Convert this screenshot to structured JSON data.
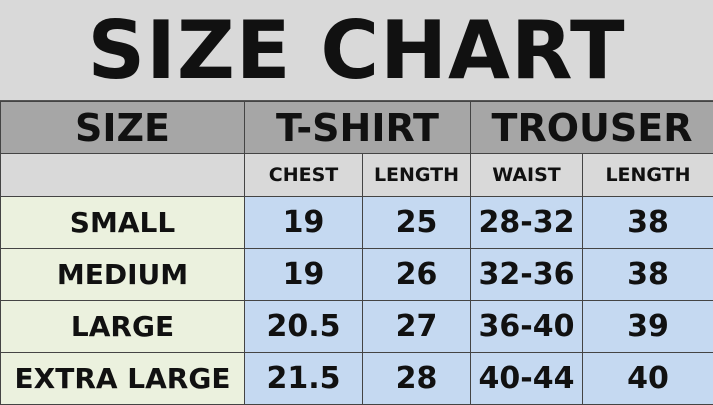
{
  "title": "SIZE CHART",
  "header": {
    "size": "SIZE",
    "tshirt": "T-SHIRT",
    "trouser": "TROUSER"
  },
  "subheader": [
    "CHEST",
    "LENGTH",
    "WAIST",
    "LENGTH"
  ],
  "rows": [
    {
      "size": "SMALL",
      "values": [
        "19",
        "25",
        "28-32",
        "38"
      ]
    },
    {
      "size": "MEDIUM",
      "values": [
        "19",
        "26",
        "32-36",
        "38"
      ]
    },
    {
      "size": "LARGE",
      "values": [
        "20.5",
        "27",
        "36-40",
        "39"
      ]
    },
    {
      "size": "EXTRA LARGE",
      "values": [
        "21.5",
        "28",
        "40-44",
        "40"
      ]
    }
  ],
  "colors": {
    "title_bg": "#d9d9d9",
    "header_bg": "#a6a6a6",
    "size_col_bg": "#ebf1de",
    "value_bg": "#c5d9f1"
  }
}
